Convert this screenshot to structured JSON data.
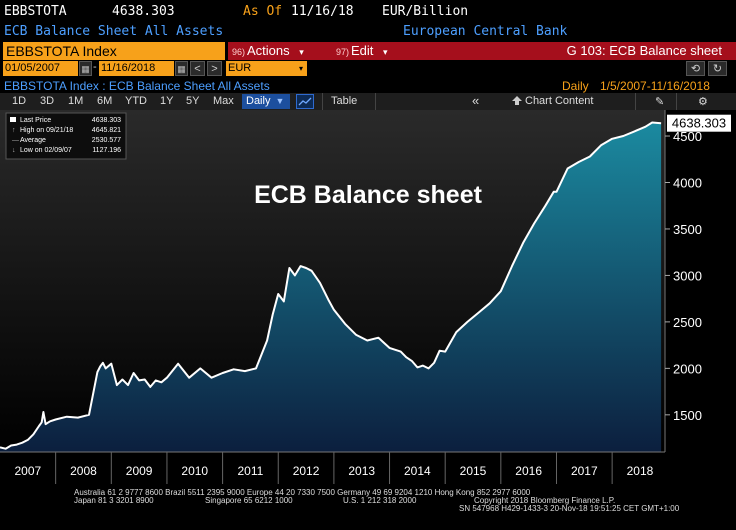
{
  "header": {
    "ticker": "EBBSTOTA",
    "price": "4638.303",
    "as_of_label": "As Of",
    "as_of_date": "11/16/18",
    "unit": "EUR/Billion",
    "description": "ECB Balance Sheet All Assets",
    "source": "European Central Bank"
  },
  "command_bar": {
    "index_label": "EBBSTOTA Index",
    "actions_num": "96)",
    "actions_label": "Actions",
    "actions_arrow": "▾",
    "edit_num": "97)",
    "edit_label": "Edit",
    "edit_arrow": "▾",
    "page_label": "G 103: ECB Balance sheet"
  },
  "date_range": {
    "start": "01/05/2007",
    "end": "11/16/2018",
    "currency": "EUR",
    "prev": "<",
    "next": ">",
    "calendar_glyph": "▦",
    "dd_glyph": "▾",
    "refresh_glyph": "⟲",
    "redo_glyph": "↻"
  },
  "subtitle": {
    "left": "EBBSTOTA Index : ECB Balance Sheet All Assets",
    "freq": "Daily",
    "range": "1/5/2007-11/16/2018"
  },
  "toolbar": {
    "periods": [
      "1D",
      "3D",
      "1M",
      "6M",
      "YTD",
      "1Y",
      "5Y",
      "Max"
    ],
    "frequency": "Daily",
    "frequency_arrow": "▼",
    "table_label": "Table",
    "collapse_glyph": "«",
    "chart_content_label": "Chart Content",
    "pencil_glyph": "✎",
    "gear_glyph": "⚙"
  },
  "legend": {
    "last_price_label": "Last Price",
    "last_price_value": "4638.303",
    "high_label": "High on 09/21/18",
    "high_value": "4645.821",
    "avg_label": "Average",
    "avg_value": "2530.577",
    "low_label": "Low on 02/09/07",
    "low_value": "1127.196"
  },
  "last_price_tag": "4638.303",
  "footer": {
    "line1": "Australia 61 2 9777 8600 Brazil 5511 2395 9000 Europe 44 20 7330 7500 Germany 49 69 9204 1210 Hong Kong 852 2977 6000",
    "line2a": "Japan 81 3 3201 8900",
    "line2b": "Singapore 65 6212 1000",
    "line2c": "U.S. 1 212 318 2000",
    "line2d": "Copyright 2018 Bloomberg Finance L.P.",
    "line3": "SN 547968 H429-1433-3 20-Nov-18 19:51:25 CET  GMT+1:00"
  },
  "colors": {
    "line": "#ffffff",
    "area_top": "#1b8aa0",
    "area_bottom": "#0c1f3e",
    "plot_top": "#2a2a2a",
    "plot_bottom": "#000000",
    "ticker_orange": "#f7a11a",
    "command_red": "#a50f1c",
    "link_blue": "#4d9fff"
  },
  "chart_data": {
    "type": "area",
    "title": "ECB Balance sheet",
    "xlabel": "",
    "ylabel": "",
    "ylim": [
      1100,
      4780
    ],
    "xlim": [
      2007.0,
      2018.95
    ],
    "yticks": [
      1500,
      2000,
      2500,
      3000,
      3500,
      4000,
      4500
    ],
    "xticks": [
      "2007",
      "2008",
      "2009",
      "2010",
      "2011",
      "2012",
      "2013",
      "2014",
      "2015",
      "2016",
      "2017",
      "2018"
    ],
    "grid": false,
    "series": [
      {
        "x": [
          2007.0,
          2007.1,
          2007.2,
          2007.3,
          2007.4,
          2007.5,
          2007.6,
          2007.7,
          2007.75,
          2007.78,
          2007.82,
          2007.9,
          2008.0,
          2008.2,
          2008.4,
          2008.6,
          2008.75,
          2008.8,
          2008.85,
          2008.9,
          2009.0,
          2009.1,
          2009.2,
          2009.3,
          2009.4,
          2009.5,
          2009.6,
          2009.7,
          2009.8,
          2009.9,
          2010.0,
          2010.2,
          2010.4,
          2010.6,
          2010.8,
          2011.0,
          2011.2,
          2011.4,
          2011.6,
          2011.8,
          2011.9,
          2012.0,
          2012.1,
          2012.2,
          2012.3,
          2012.4,
          2012.5,
          2012.6,
          2012.75,
          2012.9,
          2013.0,
          2013.2,
          2013.4,
          2013.6,
          2013.8,
          2014.0,
          2014.2,
          2014.3,
          2014.4,
          2014.5,
          2014.6,
          2014.7,
          2014.8,
          2014.9,
          2015.0,
          2015.2,
          2015.4,
          2015.6,
          2015.8,
          2016.0,
          2016.2,
          2016.4,
          2016.6,
          2016.8,
          2016.95,
          2017.0,
          2017.2,
          2017.4,
          2017.6,
          2017.8,
          2018.0,
          2018.2,
          2018.4,
          2018.6,
          2018.72,
          2018.88
        ],
        "y": [
          1150,
          1135,
          1170,
          1180,
          1200,
          1230,
          1290,
          1380,
          1420,
          1530,
          1400,
          1430,
          1450,
          1480,
          1470,
          1500,
          1960,
          2020,
          2060,
          2000,
          2050,
          1820,
          1880,
          1820,
          1950,
          1870,
          1880,
          1800,
          1870,
          1850,
          1900,
          2050,
          1900,
          2000,
          1900,
          1950,
          1990,
          1970,
          2000,
          2300,
          2580,
          2800,
          2720,
          3080,
          3000,
          3100,
          3080,
          3050,
          2920,
          2740,
          2630,
          2480,
          2360,
          2300,
          2330,
          2220,
          2180,
          2120,
          2080,
          2010,
          2030,
          2000,
          2060,
          2190,
          2180,
          2390,
          2500,
          2600,
          2700,
          2830,
          3100,
          3350,
          3560,
          3750,
          3900,
          3900,
          4150,
          4220,
          4280,
          4400,
          4470,
          4500,
          4550,
          4600,
          4645.821,
          4638.303
        ]
      }
    ]
  }
}
